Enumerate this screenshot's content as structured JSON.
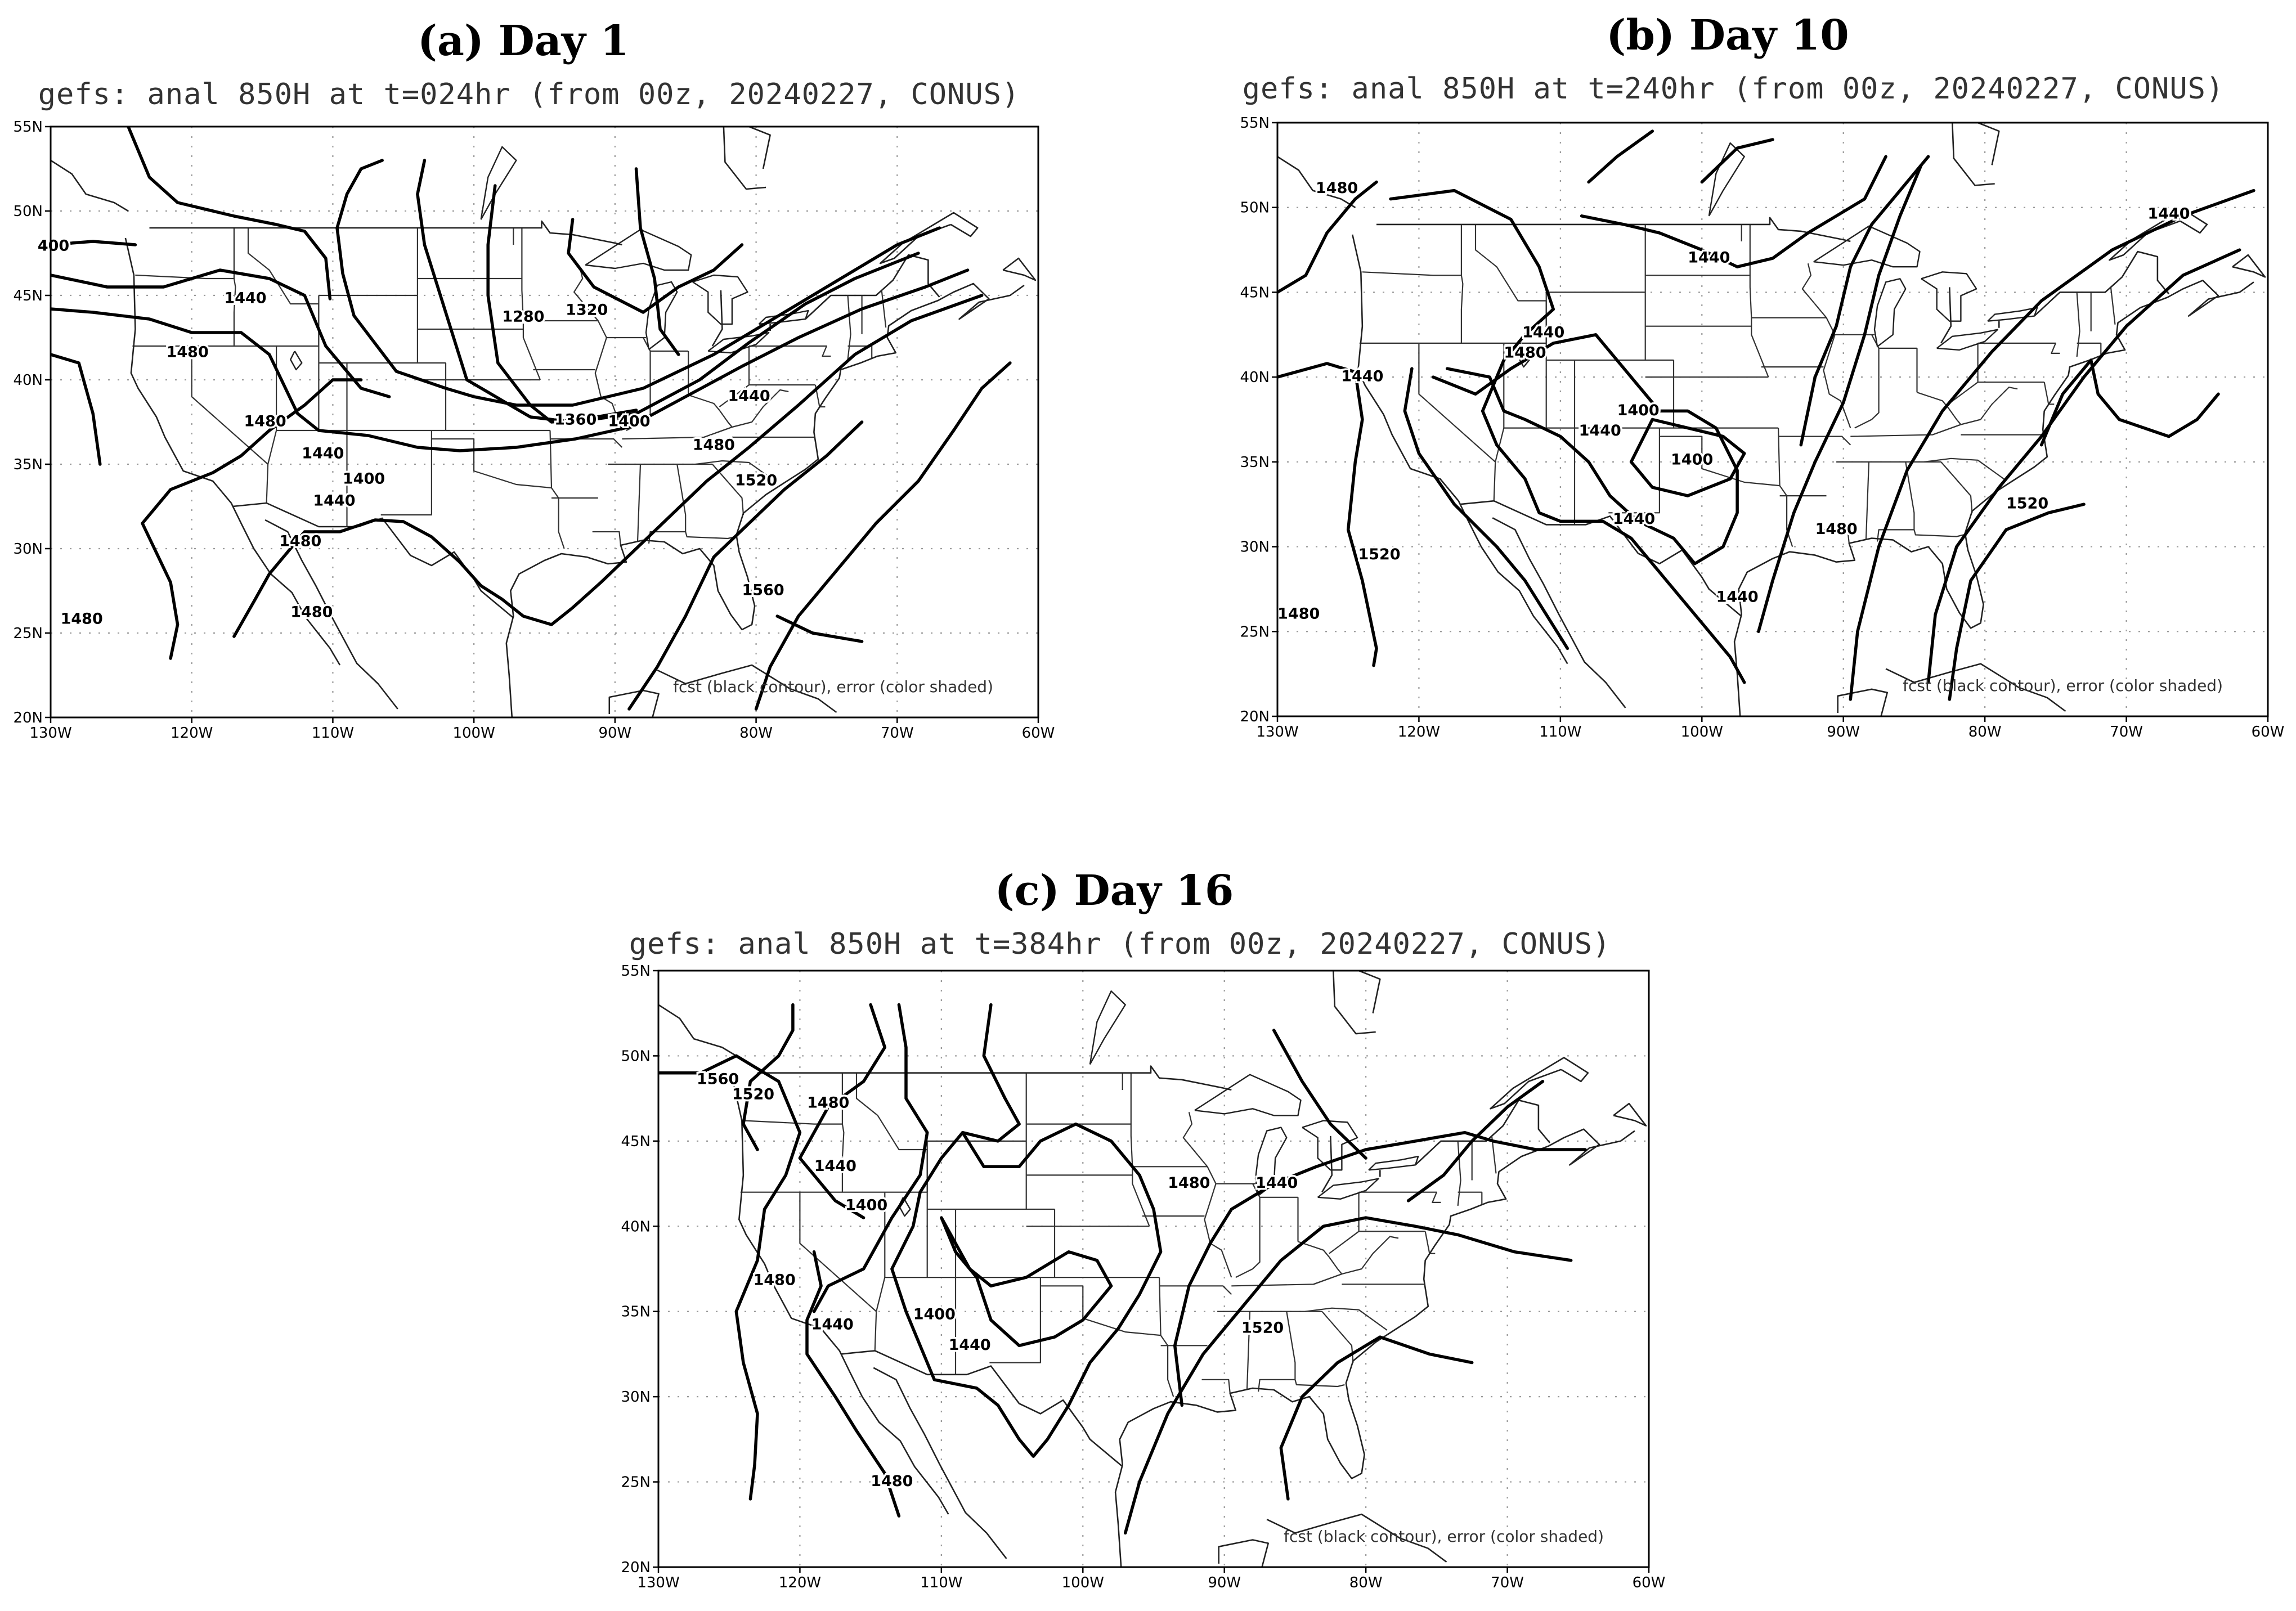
{
  "panels": [
    {
      "id": "a",
      "title": "(a) Day 1",
      "subtitle": "gefs: anal 850H at t=024hr (from 00z, 20240227, CONUS)",
      "footnote": "fcst (black contour), error (color shaded)",
      "contour_labels": [
        "400",
        "1440",
        "1480",
        "1480",
        "1440",
        "1400",
        "1440",
        "1480",
        "1480",
        "1480",
        "1280",
        "1320",
        "1360",
        "1400",
        "1440",
        "1480",
        "1520",
        "1560"
      ]
    },
    {
      "id": "b",
      "title": "(b) Day 10",
      "subtitle": "gefs: anal 850H at t=240hr (from 00z, 20240227, CONUS)",
      "footnote": "fcst (black contour), error (color shaded)",
      "contour_labels": [
        "1480",
        "1480",
        "1440",
        "1440",
        "1400",
        "1400",
        "1440",
        "1440",
        "1480",
        "1520",
        "1440",
        "1480",
        "1520",
        "1440",
        "1440"
      ]
    },
    {
      "id": "c",
      "title": "(c) Day 16",
      "subtitle": "gefs: anal 850H at t=384hr (from 00z, 20240227, CONUS)",
      "footnote": "fcst (black contour), error (color shaded)",
      "contour_labels": [
        "1560",
        "1520",
        "1480",
        "1440",
        "1400",
        "1480",
        "1440",
        "1400",
        "1440",
        "1480",
        "1440",
        "1480",
        "1520"
      ]
    }
  ],
  "axes": {
    "lon_ticks": [
      "130W",
      "120W",
      "110W",
      "100W",
      "90W",
      "80W",
      "70W",
      "60W"
    ],
    "lat_ticks": [
      "20N",
      "25N",
      "30N",
      "35N",
      "40N",
      "45N",
      "50N",
      "55N"
    ]
  }
}
